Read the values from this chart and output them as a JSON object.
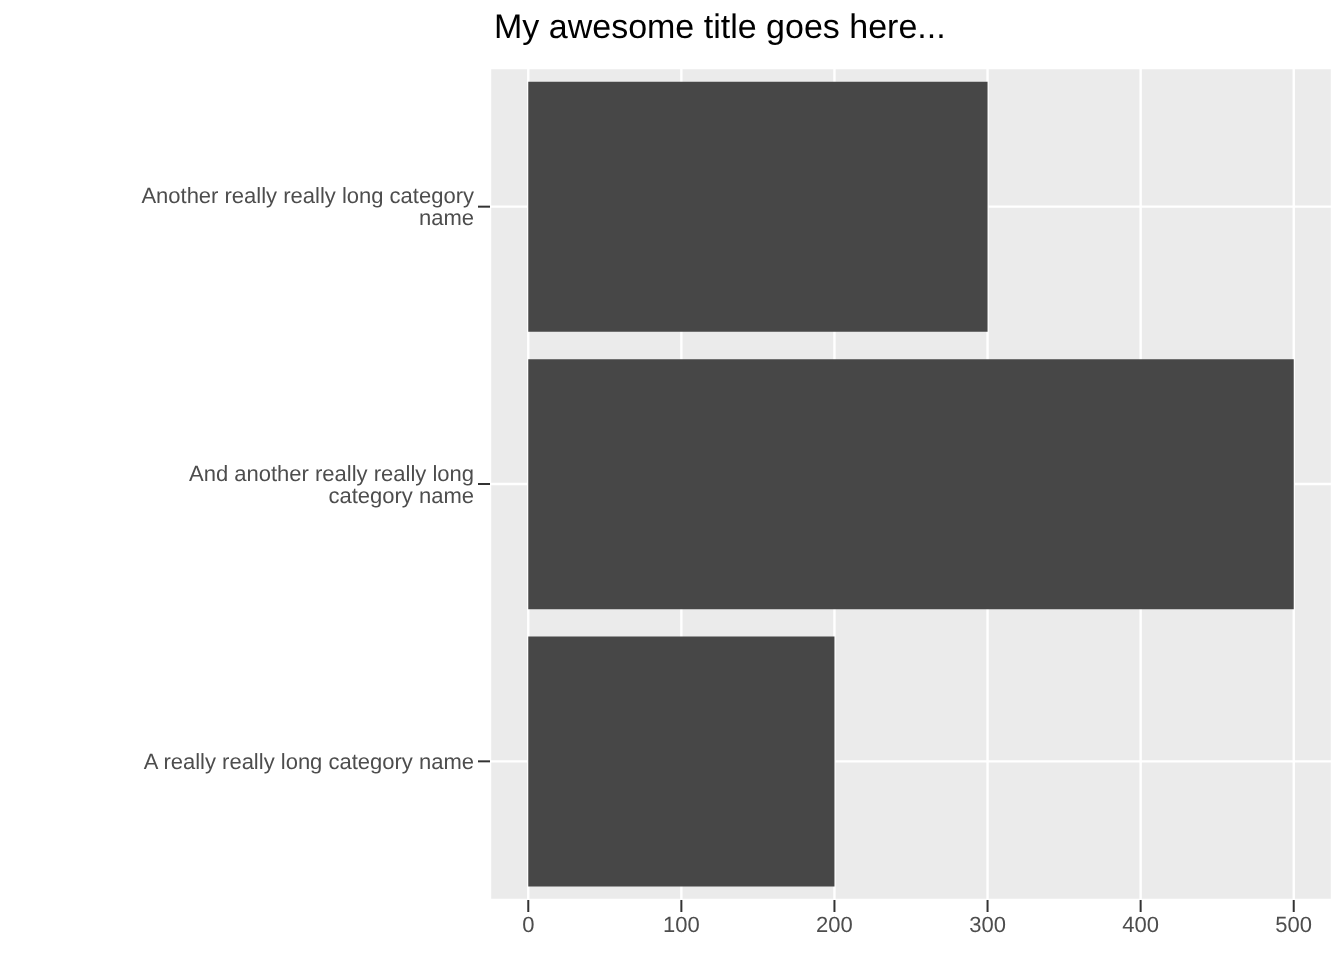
{
  "chart_data": {
    "type": "bar",
    "orientation": "horizontal",
    "title": "My awesome title goes here...",
    "categories": [
      "Another really really long category name",
      "And another really really long category name",
      "A really really long category name"
    ],
    "values": [
      300,
      500,
      200
    ],
    "color": "#474747",
    "xlim": [
      -25,
      525
    ],
    "xticks": [
      0,
      100,
      200,
      300,
      400,
      500
    ],
    "grid": true
  }
}
